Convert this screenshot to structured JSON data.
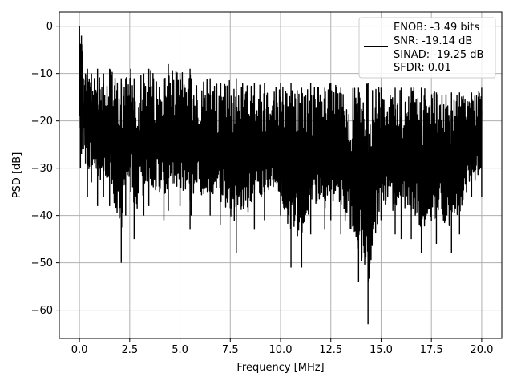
{
  "chart_data": {
    "type": "line",
    "title": "",
    "xlabel": "Frequency [MHz]",
    "ylabel": "PSD [dB]",
    "xlim": [
      -1.0,
      21.0
    ],
    "ylim": [
      -66.0,
      3.0
    ],
    "xticks": [
      0.0,
      2.5,
      5.0,
      7.5,
      10.0,
      12.5,
      15.0,
      17.5,
      20.0
    ],
    "xtick_labels": [
      "0.0",
      "2.5",
      "5.0",
      "7.5",
      "10.0",
      "12.5",
      "15.0",
      "17.5",
      "20.0"
    ],
    "yticks": [
      0,
      -10,
      -20,
      -30,
      -40,
      -50,
      -60
    ],
    "ytick_labels": [
      "0",
      "−10",
      "−20",
      "−30",
      "−40",
      "−50",
      "−60"
    ],
    "grid": true,
    "legend_position": "upper right",
    "legend_entries": [
      "ENOB: -3.49 bits",
      "SNR: -19.14 dB",
      "SINAD: -19.25 dB",
      "SFDR: 0.01"
    ],
    "series": [
      {
        "color": "#000000",
        "x": [
          0.0,
          0.05,
          0.1,
          0.15,
          0.2,
          0.3,
          0.4,
          0.6,
          0.9,
          1.2,
          1.5,
          2.08,
          2.3,
          2.55,
          2.72,
          3.2,
          3.45,
          4.2,
          4.42,
          5.0,
          5.5,
          5.55,
          6.5,
          7.0,
          7.8,
          8.7,
          9.2,
          10.0,
          10.52,
          11.05,
          11.5,
          12.2,
          12.5,
          13.0,
          13.88,
          14.35,
          15.0,
          15.7,
          16.0,
          16.5,
          17.0,
          17.75,
          18.5,
          18.9,
          19.5,
          20.0
        ],
        "y_min": [
          -19,
          -30,
          -27,
          -26,
          -26,
          -29,
          -36,
          -33,
          -38,
          -36,
          -38,
          -50,
          -40,
          -35,
          -45,
          -40,
          -38,
          -41,
          -39,
          -38,
          -43,
          -40,
          -40,
          -42,
          -48,
          -43,
          -41,
          -40,
          -51,
          -51,
          -44,
          -43,
          -41,
          -44,
          -54,
          -63,
          -41,
          -44,
          -45,
          -45,
          -48,
          -46,
          -48,
          -44,
          -36,
          -36
        ],
        "y_max": [
          0,
          -4,
          -2,
          -6,
          -11,
          -10,
          -9,
          -10,
          -9,
          -10,
          -9,
          -11,
          -11,
          -9,
          -11,
          -10,
          -9,
          -11,
          -8,
          -10,
          -9,
          -11,
          -11,
          -12,
          -11,
          -12,
          -12,
          -12,
          -12,
          -13,
          -12,
          -13,
          -12,
          -13,
          -13,
          -12,
          -13,
          -13,
          -13,
          -13,
          -13,
          -14,
          -14,
          -14,
          -14,
          -13
        ]
      }
    ]
  }
}
